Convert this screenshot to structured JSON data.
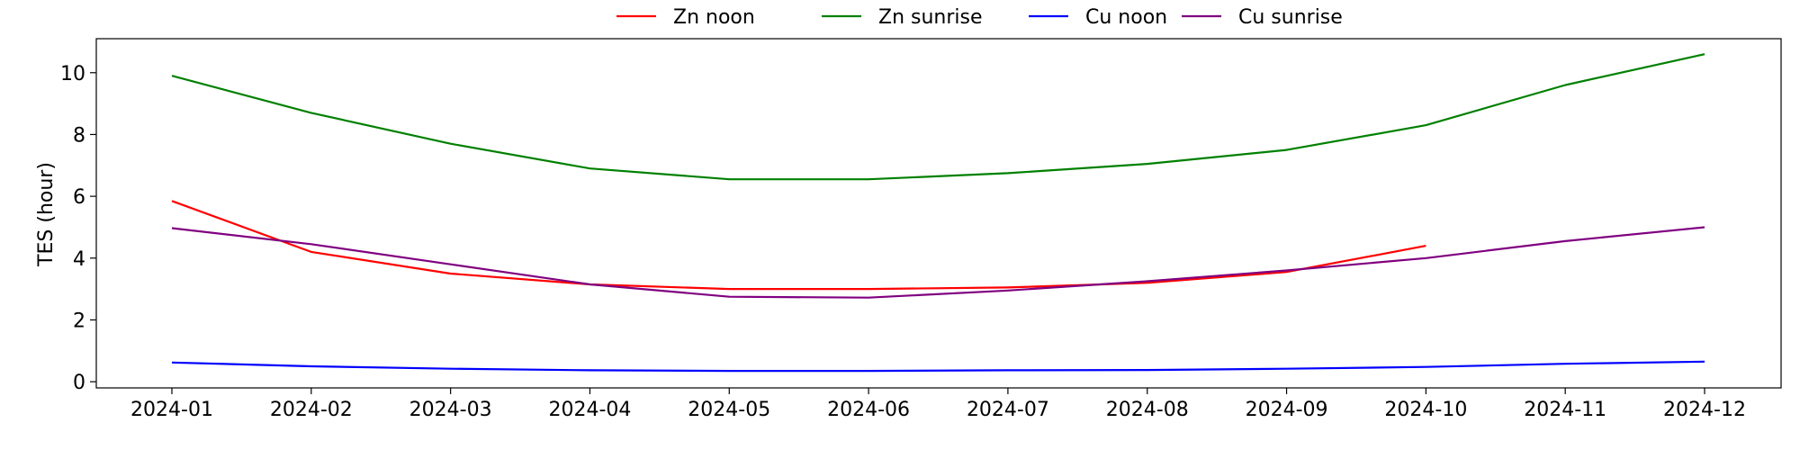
{
  "chart_data": {
    "type": "line",
    "title": "",
    "xlabel": "",
    "ylabel": "TES (hour)",
    "x": [
      "2024-01",
      "2024-02",
      "2024-03",
      "2024-04",
      "2024-05",
      "2024-06",
      "2024-07",
      "2024-08",
      "2024-09",
      "2024-10",
      "2024-11",
      "2024-12"
    ],
    "ylim": [
      -0.2,
      11.1
    ],
    "yticks": [
      0,
      2,
      4,
      6,
      8,
      10
    ],
    "grid": false,
    "legend_position": "top-center",
    "series": [
      {
        "name": "Zn noon",
        "color": "#ff0000",
        "values": [
          5.85,
          4.2,
          3.5,
          3.15,
          3.0,
          3.0,
          3.05,
          3.2,
          3.55,
          4.4,
          null,
          null
        ]
      },
      {
        "name": "Zn sunrise",
        "color": "#008000",
        "values": [
          9.9,
          8.7,
          7.7,
          6.9,
          6.55,
          6.55,
          6.75,
          7.05,
          7.5,
          8.3,
          9.6,
          10.6
        ]
      },
      {
        "name": "Cu noon",
        "color": "#0000ff",
        "values": [
          0.62,
          0.5,
          0.42,
          0.37,
          0.35,
          0.35,
          0.37,
          0.38,
          0.42,
          0.48,
          0.58,
          0.65
        ]
      },
      {
        "name": "Cu sunrise",
        "color": "#800080",
        "values": [
          4.97,
          4.45,
          3.8,
          3.15,
          2.75,
          2.72,
          2.95,
          3.25,
          3.6,
          4.0,
          4.55,
          5.0
        ]
      }
    ]
  }
}
